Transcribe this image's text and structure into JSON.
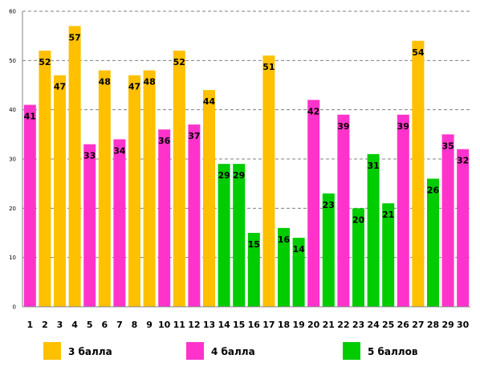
{
  "chart_data": {
    "type": "bar",
    "categories": [
      "1",
      "2",
      "3",
      "4",
      "5",
      "6",
      "7",
      "8",
      "9",
      "10",
      "11",
      "12",
      "13",
      "14",
      "15",
      "16",
      "17",
      "18",
      "19",
      "20",
      "21",
      "22",
      "23",
      "24",
      "25",
      "26",
      "27",
      "28",
      "29",
      "30"
    ],
    "values": [
      41,
      52,
      47,
      57,
      33,
      48,
      34,
      47,
      48,
      36,
      52,
      37,
      44,
      29,
      29,
      15,
      51,
      16,
      14,
      42,
      23,
      39,
      20,
      31,
      21,
      39,
      54,
      26,
      35,
      32
    ],
    "groups": [
      "4 балла",
      "3 балла",
      "3 балла",
      "3 балла",
      "4 балла",
      "3 балла",
      "4 балла",
      "3 балла",
      "3 балла",
      "4 балла",
      "3 балла",
      "4 балла",
      "3 балла",
      "5 баллов",
      "5 баллов",
      "5 баллов",
      "3 балла",
      "5 баллов",
      "5 баллов",
      "4 балла",
      "5 баллов",
      "4 балла",
      "5 баллов",
      "5 баллов",
      "5 баллов",
      "4 балла",
      "3 балла",
      "5 баллов",
      "4 балла",
      "4 балла"
    ],
    "legend": [
      {
        "name": "3 балла",
        "color": "#FFC000"
      },
      {
        "name": "4 балла",
        "color": "#FF33CC"
      },
      {
        "name": "5 баллов",
        "color": "#00CC00"
      }
    ],
    "ylim": [
      0,
      60
    ],
    "yticks": [
      "0",
      "10",
      "20",
      "30",
      "40",
      "50",
      "60"
    ],
    "grid": "horizontal dashed",
    "legend_position": "bottom",
    "title": "",
    "xlabel": "",
    "ylabel": ""
  }
}
